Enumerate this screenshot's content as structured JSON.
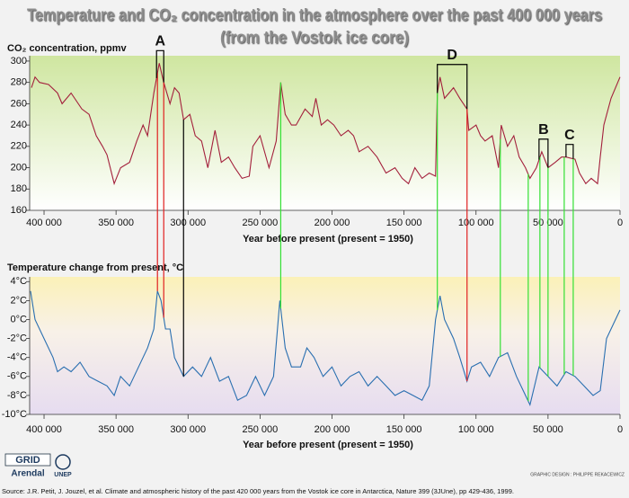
{
  "title": "Temperature and CO₂ concentration in the atmosphere over the past 400 000 years",
  "subtitle": "(from the Vostok ice core)",
  "source": "Source: J.R. Petit, J. Jouzel, et al. Climate and atmospheric history of the past 420 000 years from the Vostok ice core in Antarctica, Nature 399 (3JUne), pp 429-436, 1999.",
  "credits": "GRAPHIC DESIGN : PHILIPPE REKACEWICZ",
  "logos": [
    "GRID",
    "Arendal",
    "UNEP"
  ],
  "chart_data": [
    {
      "type": "line",
      "y_label": "CO₂ concentration, ppmv",
      "x_label": "Year before present (present = 1950)",
      "color": "#a3203c",
      "xlim": [
        410000,
        0
      ],
      "ylim": [
        160,
        305
      ],
      "xticks": [
        {
          "value": 400000,
          "label": "400 000"
        },
        {
          "value": 350000,
          "label": "350 000"
        },
        {
          "value": 300000,
          "label": "300 000"
        },
        {
          "value": 250000,
          "label": "250 000"
        },
        {
          "value": 200000,
          "label": "200 000"
        },
        {
          "value": 150000,
          "label": "150 000"
        },
        {
          "value": 100000,
          "label": "100 000"
        },
        {
          "value": 50000,
          "label": "50 000"
        },
        0
      ],
      "yticks": [
        160,
        180,
        200,
        220,
        240,
        260,
        280,
        300
      ],
      "x": [
        408750,
        406250,
        403125,
        396875,
        390625,
        387500,
        381250,
        373750,
        368750,
        363750,
        359375,
        356250,
        351250,
        346875,
        340625,
        335625,
        331250,
        328125,
        323750,
        320000,
        316875,
        312500,
        309375,
        306250,
        303125,
        298750,
        295000,
        290625,
        286250,
        281250,
        276875,
        271875,
        267500,
        262500,
        257500,
        255000,
        250000,
        243750,
        238750,
        235625,
        232500,
        228125,
        225000,
        218750,
        213750,
        211250,
        207500,
        203125,
        198750,
        193750,
        188750,
        185000,
        181250,
        175000,
        168750,
        162500,
        156250,
        151250,
        146875,
        142500,
        137500,
        132500,
        128125,
        126875,
        125000,
        121875,
        115625,
        111250,
        106250,
        105000,
        100000,
        96875,
        93750,
        88750,
        84375,
        82500,
        78125,
        73750,
        70000,
        65625,
        62500,
        58125,
        54375,
        50000,
        45000,
        40625,
        37500,
        31250,
        28125,
        23750,
        20000,
        15625,
        13750,
        11250,
        6250,
        0
      ],
      "values": [
        275,
        285,
        280,
        278,
        270,
        260,
        270,
        255,
        250,
        230,
        220,
        212,
        185,
        200,
        205,
        225,
        240,
        230,
        270,
        298,
        280,
        260,
        275,
        270,
        245,
        250,
        230,
        225,
        200,
        235,
        205,
        210,
        200,
        190,
        192,
        220,
        230,
        200,
        225,
        280,
        250,
        240,
        240,
        255,
        248,
        265,
        240,
        245,
        240,
        230,
        235,
        230,
        215,
        220,
        210,
        195,
        200,
        190,
        185,
        200,
        190,
        195,
        192,
        270,
        285,
        265,
        275,
        265,
        255,
        235,
        240,
        230,
        225,
        230,
        200,
        240,
        220,
        230,
        210,
        200,
        190,
        200,
        215,
        200,
        205,
        210,
        210,
        208,
        195,
        185,
        190,
        185,
        210,
        240,
        265,
        285
      ]
    },
    {
      "type": "line",
      "y_label": "Temperature change from present, °C",
      "x_label": "Year before present (present = 1950)",
      "color": "#2a6fb0",
      "xlim": [
        410000,
        0
      ],
      "ylim": [
        -10,
        4.5
      ],
      "xticks": [
        {
          "value": 400000,
          "label": "400 000"
        },
        {
          "value": 350000,
          "label": "350 000"
        },
        {
          "value": 300000,
          "label": "300 000"
        },
        {
          "value": 250000,
          "label": "250 000"
        },
        {
          "value": 200000,
          "label": "200 000"
        },
        {
          "value": 150000,
          "label": "150 000"
        },
        {
          "value": 100000,
          "label": "100 000"
        },
        {
          "value": 50000,
          "label": "50 000"
        },
        0
      ],
      "yticks": [
        {
          "value": 4,
          "label": "4°C"
        },
        {
          "value": 2,
          "label": "2°C"
        },
        {
          "value": 0,
          "label": "0°C"
        },
        {
          "value": -2,
          "label": "-2°C"
        },
        {
          "value": -4,
          "label": "-4°C"
        },
        {
          "value": -6,
          "label": "-6°C"
        },
        {
          "value": -8,
          "label": "-8°C"
        },
        {
          "value": -10,
          "label": "-10°C"
        }
      ],
      "x": [
        409375,
        406250,
        400000,
        393750,
        390625,
        386250,
        381250,
        375000,
        368750,
        362500,
        356250,
        351250,
        346875,
        340625,
        334375,
        328125,
        323750,
        321250,
        318750,
        315625,
        312500,
        309375,
        306250,
        303125,
        296875,
        290625,
        284375,
        278125,
        271875,
        265625,
        259375,
        253125,
        246875,
        240625,
        236250,
        232500,
        228125,
        221875,
        217500,
        212500,
        206250,
        200000,
        193750,
        187500,
        181250,
        175000,
        168750,
        162500,
        156250,
        150000,
        143750,
        137500,
        132500,
        128125,
        125000,
        121875,
        115625,
        111250,
        106250,
        103125,
        96875,
        90625,
        84375,
        78125,
        71875,
        65625,
        62500,
        59375,
        56250,
        50000,
        43750,
        37500,
        31250,
        25000,
        18750,
        13750,
        9375,
        6250,
        0
      ],
      "values": [
        3,
        0,
        -2,
        -4,
        -5.5,
        -5,
        -5.5,
        -4.5,
        -6,
        -6.5,
        -7,
        -8,
        -6,
        -7,
        -5,
        -3,
        -1,
        3,
        2,
        -1,
        -1,
        -4,
        -5,
        -6,
        -5,
        -6,
        -4,
        -6.5,
        -6,
        -8.5,
        -8,
        -6,
        -8,
        -6,
        2,
        -3,
        -5,
        -5,
        -3,
        -4,
        -6,
        -5,
        -7,
        -6,
        -5.5,
        -7,
        -6,
        -7,
        -8,
        -7.5,
        -8,
        -8.5,
        -7,
        0,
        2.5,
        0,
        -2,
        -4,
        -6.5,
        -5,
        -4.5,
        -6,
        -4,
        -3.5,
        -6,
        -8,
        -9,
        -7,
        -5,
        -6,
        -7,
        -5.5,
        -6,
        -7,
        -8,
        -7.5,
        -2,
        -1,
        1
      ]
    }
  ],
  "reference_lines": [
    {
      "x": 321250,
      "color": "#e02020"
    },
    {
      "x": 316875,
      "color": "#e02020"
    },
    {
      "x": 303125,
      "color": "#000000"
    },
    {
      "x": 235625,
      "color": "#33e033"
    },
    {
      "x": 126875,
      "color": "#33e033"
    },
    {
      "x": 106250,
      "color": "#e02020"
    },
    {
      "x": 83125,
      "color": "#33e033"
    },
    {
      "x": 63750,
      "color": "#33e033"
    },
    {
      "x": 55625,
      "color": "#33e033"
    },
    {
      "x": 50000,
      "color": "#33e033"
    },
    {
      "x": 38750,
      "color": "#33e033"
    },
    {
      "x": 32500,
      "color": "#33e033"
    }
  ],
  "annotations": [
    {
      "text": "A",
      "x": [
        321875,
        316875
      ]
    },
    {
      "text": "D",
      "x": [
        126875,
        106250
      ]
    },
    {
      "text": "B",
      "x": [
        56250,
        50000
      ]
    },
    {
      "text": "C",
      "x": [
        37500,
        32500
      ]
    }
  ]
}
